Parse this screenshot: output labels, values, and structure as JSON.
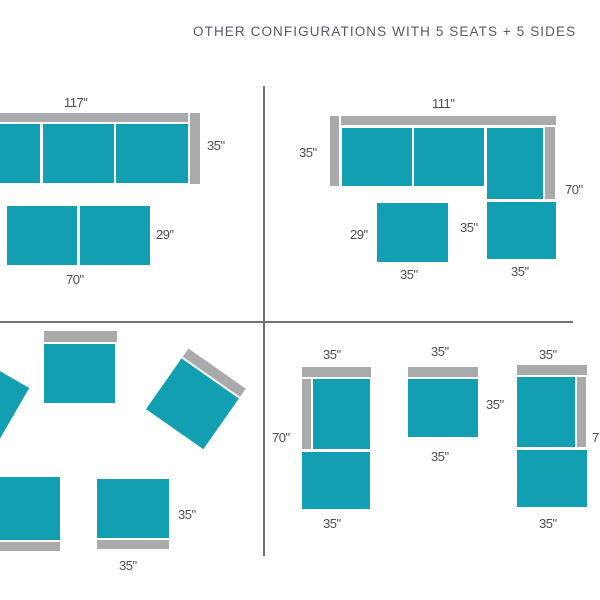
{
  "title": "OTHER CONFIGURATIONS WITH 5 SEATS + 5 SIDES",
  "colors": {
    "seat": "#129fb1",
    "side": "#a9aaab",
    "text": "#4a4f57",
    "divider": "#6f7378"
  },
  "top_left": {
    "sofa_width": "117\"",
    "sofa_depth": "35\"",
    "loveseat_depth": "29\"",
    "loveseat_width": "70\""
  },
  "top_right": {
    "sofa_width": "111\"",
    "sofa_depth": "35\"",
    "chaise_length": "70\"",
    "ottoman_depth": "29\"",
    "ottoman_width": "35\"",
    "chaise_seat_depth": "35\"",
    "chaise_seat_width": "35\""
  },
  "bottom_left": {
    "side_dim": "35\"",
    "bottom_dim": "35\""
  },
  "bottom_right": {
    "left_width": "35\"",
    "left_length": "70\"",
    "left_bottom": "35\"",
    "mid_width": "35\"",
    "mid_depth": "35\"",
    "mid_bottom": "35\"",
    "right_width": "35\"",
    "right_length": "7",
    "right_bottom": "35\""
  }
}
